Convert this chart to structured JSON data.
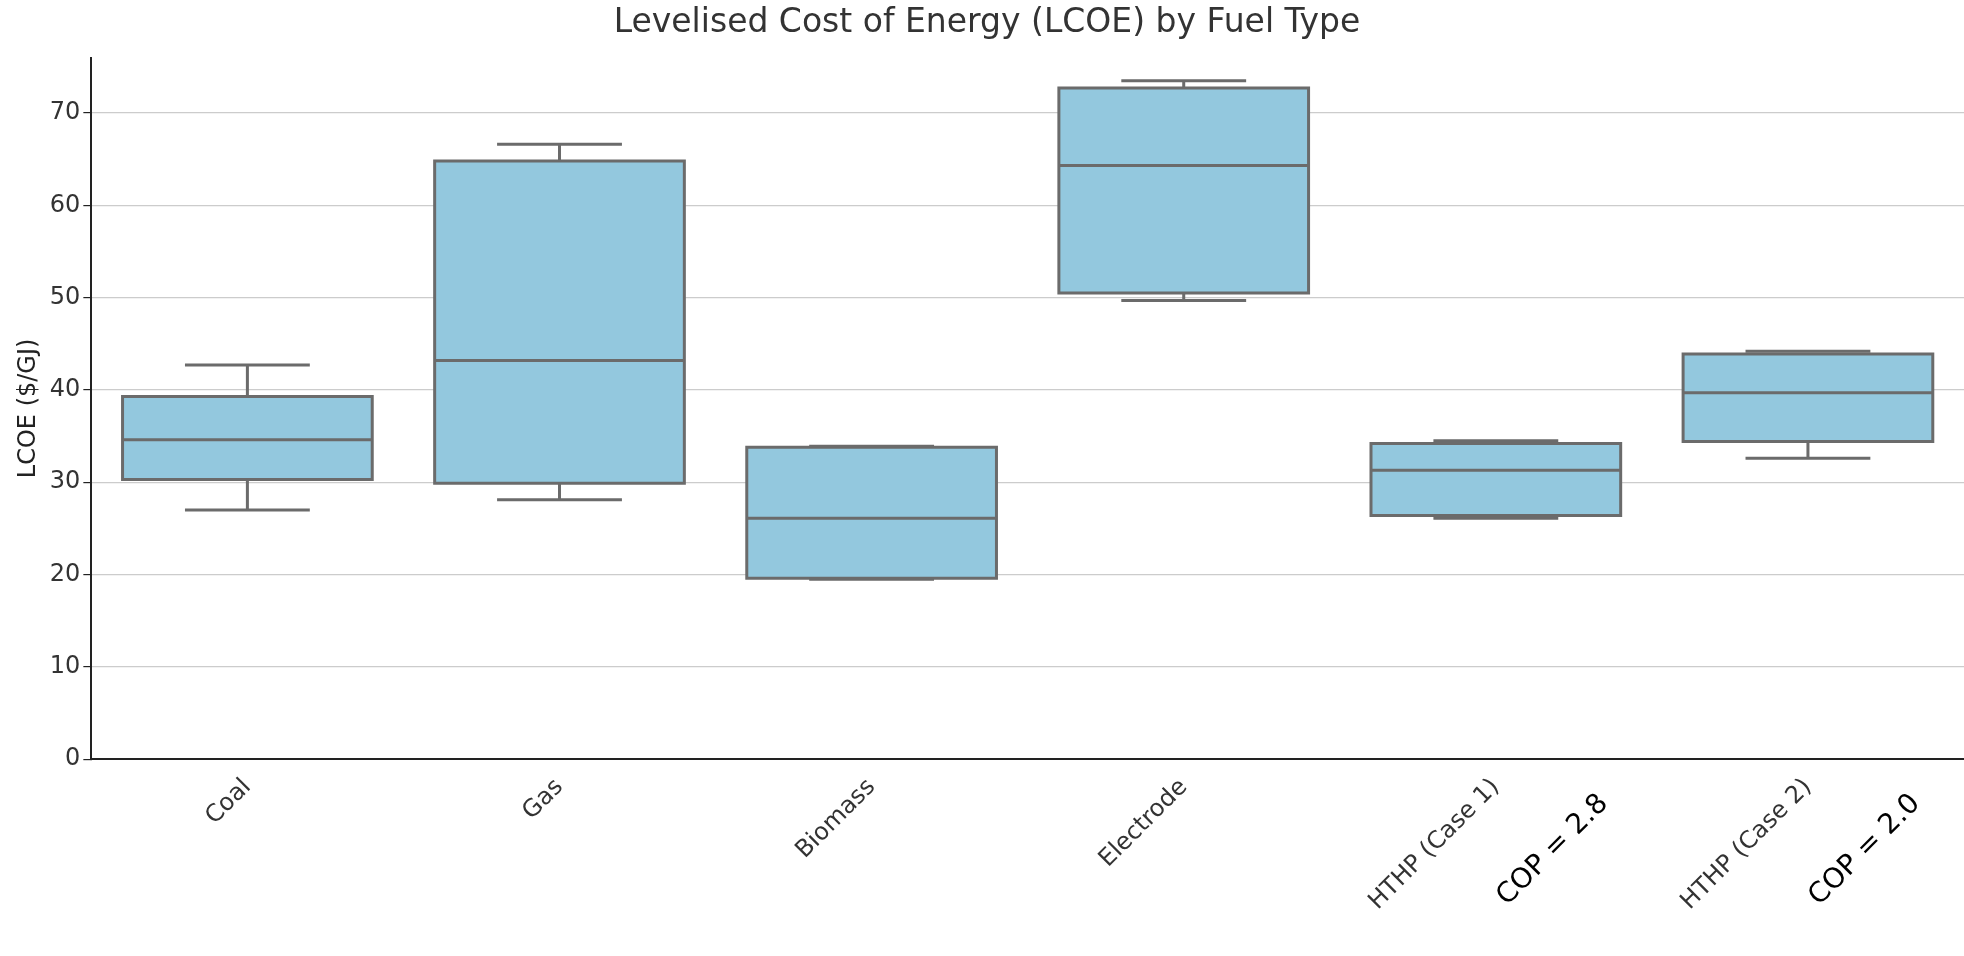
{
  "chart_data": {
    "type": "box",
    "title": "Levelised Cost of Energy (LCOE) by Fuel Type",
    "ylabel": "LCOE ($/GJ)",
    "categories": [
      "Coal",
      "Gas",
      "Biomass",
      "Electrode",
      "HTHP (Case 1)",
      "HTHP (Case 2)"
    ],
    "series": [
      {
        "color": "#93c8de",
        "boxes": [
          {
            "low": 27.0,
            "q1": 30.3,
            "median": 34.6,
            "q3": 39.3,
            "high": 42.7
          },
          {
            "low": 28.1,
            "q1": 29.9,
            "median": 43.2,
            "q3": 64.8,
            "high": 66.6
          },
          {
            "low": 19.5,
            "q1": 19.6,
            "median": 26.1,
            "q3": 33.8,
            "high": 33.9
          },
          {
            "low": 49.7,
            "q1": 50.5,
            "median": 64.3,
            "q3": 72.7,
            "high": 73.5
          },
          {
            "low": 26.1,
            "q1": 26.4,
            "median": 31.3,
            "q3": 34.2,
            "high": 34.5
          },
          {
            "low": 32.6,
            "q1": 34.4,
            "median": 39.7,
            "q3": 43.9,
            "high": 44.2
          }
        ]
      }
    ],
    "ylim": [
      0,
      76
    ],
    "yticks": [
      0,
      10,
      20,
      30,
      40,
      50,
      60,
      70
    ],
    "grid": "y",
    "annotations": [
      "COP = 2.8",
      "COP = 2.0"
    ]
  }
}
